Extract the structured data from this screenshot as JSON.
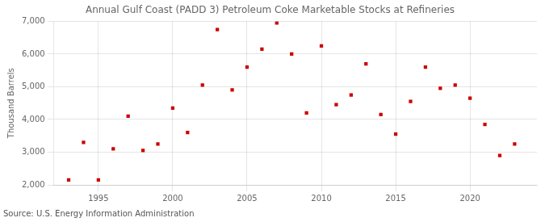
{
  "chart_data": {
    "type": "scatter",
    "title": "Annual Gulf Coast (PADD 3) Petroleum Coke Marketable Stocks at Refineries",
    "ylabel": "Thousand Barrels",
    "annotations": [
      "Source: U.S. Energy Information Administration"
    ],
    "x": [
      1993,
      1994,
      1995,
      1996,
      1997,
      1998,
      1999,
      2000,
      2001,
      2002,
      2003,
      2004,
      2005,
      2006,
      2007,
      2008,
      2009,
      2010,
      2011,
      2012,
      2013,
      2014,
      2015,
      2016,
      2017,
      2018,
      2019,
      2020,
      2021,
      2022,
      2023
    ],
    "values": [
      2150,
      3300,
      2150,
      3100,
      4100,
      3050,
      3250,
      4350,
      3600,
      5050,
      6750,
      4900,
      5600,
      6150,
      6950,
      6000,
      4200,
      6250,
      4450,
      4750,
      5700,
      4150,
      3550,
      4550,
      5600,
      4950,
      5050,
      4650,
      3850,
      2900,
      3250
    ],
    "color": "#cc0000",
    "marker": "square",
    "xlim": [
      1992,
      2024.5
    ],
    "ylim": [
      2000,
      7000
    ],
    "xticks": [
      1995,
      2000,
      2005,
      2010,
      2015,
      2020
    ],
    "yticks": [
      {
        "value": 2000,
        "label": "2,000"
      },
      {
        "value": 3000,
        "label": "3,000"
      },
      {
        "value": 4000,
        "label": "4,000"
      },
      {
        "value": 5000,
        "label": "5,000"
      },
      {
        "value": 6000,
        "label": "6,000"
      },
      {
        "value": 7000,
        "label": "7,000"
      }
    ],
    "grid": true
  }
}
